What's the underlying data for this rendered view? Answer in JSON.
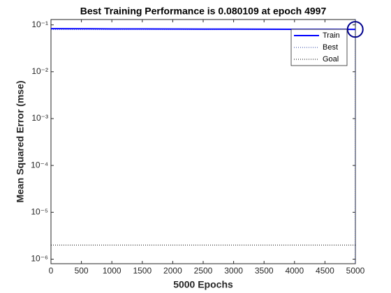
{
  "chart_data": {
    "type": "line",
    "title": "Best Training Performance is 0.080109 at epoch 4997",
    "xlabel": "5000 Epochs",
    "ylabel": "Mean Squared Error  (mse)",
    "log_y": true,
    "xlim": [
      0,
      5000
    ],
    "xticks": [
      0,
      500,
      1000,
      1500,
      2000,
      2500,
      3000,
      3500,
      4000,
      4500,
      5000
    ],
    "ylim": [
      8e-07,
      0.13
    ],
    "yticks": [
      {
        "value": 0.1,
        "label": "10⁻¹"
      },
      {
        "value": 0.01,
        "label": "10⁻²"
      },
      {
        "value": 0.001,
        "label": "10⁻³"
      },
      {
        "value": 0.0001,
        "label": "10⁻⁴"
      },
      {
        "value": 1e-05,
        "label": "10⁻⁵"
      },
      {
        "value": 1e-06,
        "label": "10⁻⁶"
      }
    ],
    "series": [
      {
        "name": "Train",
        "color": "#0000ff",
        "x": [
          0,
          500,
          1000,
          1500,
          2000,
          2500,
          3000,
          3500,
          4000,
          4500,
          4997
        ],
        "values": [
          0.083,
          0.0825,
          0.082,
          0.0818,
          0.0815,
          0.0812,
          0.081,
          0.0808,
          0.0805,
          0.0803,
          0.080109
        ]
      }
    ],
    "best": {
      "name": "Best",
      "color": "#2a3f9f",
      "epoch": 4997,
      "value": 0.080109
    },
    "goal": {
      "name": "Goal",
      "color": "#000000",
      "value": 2e-06
    },
    "legend": "upper right"
  }
}
